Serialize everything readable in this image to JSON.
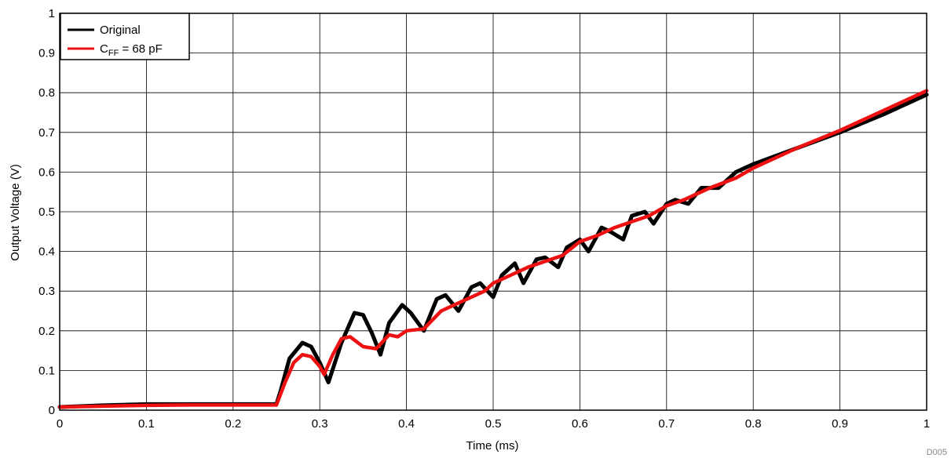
{
  "figure_id": "D005",
  "chart_data": {
    "type": "line",
    "title": "",
    "xlabel": "Time (ms)",
    "ylabel": "Output Voltage (V)",
    "xlim": [
      0,
      1
    ],
    "ylim": [
      0,
      1
    ],
    "x_ticks": [
      "0",
      "0.1",
      "0.2",
      "0.3",
      "0.4",
      "0.5",
      "0.6",
      "0.7",
      "0.8",
      "0.9",
      "1"
    ],
    "y_ticks": [
      "0",
      "0.1",
      "0.2",
      "0.3",
      "0.4",
      "0.5",
      "0.6",
      "0.7",
      "0.8",
      "0.9",
      "1"
    ],
    "grid": true,
    "legend": {
      "position": "top-left",
      "entries": [
        {
          "series": 0,
          "prefix": "Original",
          "subscript": "",
          "suffix": ""
        },
        {
          "series": 1,
          "prefix": "C",
          "subscript": "FF",
          "suffix": " = 68 pF"
        }
      ]
    },
    "series": [
      {
        "name": "Original",
        "color": "#000000",
        "x": [
          0,
          0.05,
          0.1,
          0.15,
          0.2,
          0.25,
          0.255,
          0.265,
          0.28,
          0.29,
          0.3,
          0.31,
          0.325,
          0.34,
          0.35,
          0.36,
          0.37,
          0.38,
          0.395,
          0.405,
          0.42,
          0.435,
          0.445,
          0.46,
          0.475,
          0.485,
          0.5,
          0.51,
          0.525,
          0.535,
          0.55,
          0.56,
          0.575,
          0.585,
          0.6,
          0.61,
          0.625,
          0.635,
          0.65,
          0.66,
          0.675,
          0.685,
          0.7,
          0.71,
          0.725,
          0.74,
          0.76,
          0.78,
          0.8,
          0.85,
          0.9,
          0.95,
          1.0
        ],
        "y": [
          0.008,
          0.012,
          0.015,
          0.015,
          0.015,
          0.015,
          0.05,
          0.13,
          0.17,
          0.16,
          0.12,
          0.07,
          0.17,
          0.245,
          0.24,
          0.195,
          0.14,
          0.22,
          0.265,
          0.245,
          0.2,
          0.28,
          0.29,
          0.25,
          0.31,
          0.32,
          0.285,
          0.34,
          0.37,
          0.32,
          0.38,
          0.385,
          0.36,
          0.41,
          0.43,
          0.4,
          0.46,
          0.45,
          0.43,
          0.49,
          0.5,
          0.47,
          0.52,
          0.53,
          0.52,
          0.56,
          0.56,
          0.6,
          0.62,
          0.66,
          0.7,
          0.745,
          0.795
        ]
      },
      {
        "name": "CFF = 68 pF",
        "color": "#ee1111",
        "x": [
          0,
          0.05,
          0.1,
          0.15,
          0.2,
          0.25,
          0.26,
          0.27,
          0.28,
          0.29,
          0.3,
          0.305,
          0.315,
          0.325,
          0.335,
          0.35,
          0.365,
          0.38,
          0.39,
          0.4,
          0.42,
          0.44,
          0.45,
          0.47,
          0.49,
          0.5,
          0.52,
          0.54,
          0.56,
          0.58,
          0.6,
          0.62,
          0.64,
          0.66,
          0.68,
          0.7,
          0.72,
          0.75,
          0.78,
          0.8,
          0.85,
          0.9,
          0.95,
          1.0
        ],
        "y": [
          0.008,
          0.01,
          0.012,
          0.013,
          0.013,
          0.013,
          0.07,
          0.12,
          0.14,
          0.135,
          0.11,
          0.09,
          0.14,
          0.18,
          0.185,
          0.16,
          0.155,
          0.19,
          0.185,
          0.2,
          0.205,
          0.25,
          0.26,
          0.28,
          0.3,
          0.32,
          0.34,
          0.36,
          0.375,
          0.39,
          0.425,
          0.44,
          0.46,
          0.475,
          0.49,
          0.515,
          0.53,
          0.56,
          0.585,
          0.61,
          0.66,
          0.705,
          0.755,
          0.805
        ]
      }
    ]
  }
}
